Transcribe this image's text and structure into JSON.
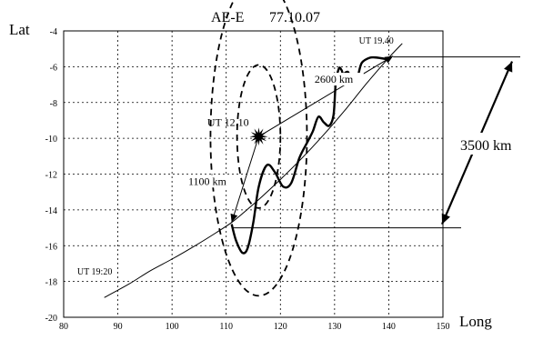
{
  "chart_data": {
    "type": "line",
    "title": "AE-E",
    "subtitle": "77.10.07",
    "xlabel": "Long",
    "ylabel": "Lat",
    "xlim": [
      80,
      150
    ],
    "ylim": [
      -20,
      -4
    ],
    "x_ticks": [
      "80",
      "90",
      "100",
      "110",
      "120",
      "130",
      "140",
      "150"
    ],
    "y_ticks": [
      "-4",
      "-6",
      "-8",
      "-10",
      "-12",
      "-14",
      "-16",
      "-18",
      "-20"
    ],
    "grid": "dotted",
    "series": [
      {
        "role": "satellite-orbit",
        "x": [
          87.5,
          92,
          96,
          100,
          104,
          108,
          111,
          114,
          117,
          120,
          124,
          128,
          132,
          136,
          140,
          142.5
        ],
        "y": [
          -18.9,
          -18.15,
          -17.4,
          -16.75,
          -16.05,
          -15.3,
          -14.7,
          -13.95,
          -13.15,
          -12.3,
          -11.1,
          -9.8,
          -8.4,
          -6.9,
          -5.5,
          -4.7
        ]
      },
      {
        "role": "disturbance-wave",
        "x": [
          111,
          111.8,
          113,
          114,
          115,
          116,
          117.5,
          119,
          120.5,
          122,
          123.5,
          125,
          126,
          127,
          128,
          129,
          129.8,
          130.2,
          130.8,
          131.3,
          131.6,
          132.5,
          133.3,
          134.2,
          135,
          136.5,
          138,
          140
        ],
        "y": [
          -14.8,
          -15.7,
          -16.4,
          -16.1,
          -14.7,
          -12.7,
          -11.5,
          -11.9,
          -12.7,
          -12.5,
          -11.1,
          -10.2,
          -9.6,
          -8.8,
          -9.1,
          -9.3,
          -8.7,
          -7.0,
          -6.1,
          -6.2,
          -6.4,
          -6.3,
          -6.9,
          -6.6,
          -5.8,
          -5.5,
          -5.5,
          -5.6
        ]
      }
    ],
    "points": {
      "source": {
        "x": 116,
        "y": -9.9,
        "label": "UT 12.10"
      },
      "start": {
        "x": 111,
        "y": -14.7,
        "label": "UT 19:20"
      },
      "end": {
        "x": 140.8,
        "y": -5.4,
        "label": "UT 19.40"
      }
    },
    "circles": [
      {
        "center": [
          116,
          -9.9
        ],
        "radius_units": 8.9,
        "label": "2600 km"
      },
      {
        "center": [
          116,
          -9.9
        ],
        "radius_units": 4.0,
        "label": "1100 km"
      }
    ],
    "annotations": [
      {
        "text": "2600 km",
        "x": 126.3,
        "y": -6.9
      },
      {
        "text": "UT 12.10",
        "x": 106.5,
        "y": -9.3
      },
      {
        "text": "1100 km",
        "x": 103,
        "y": -12.6
      },
      {
        "text": "UT 19:20",
        "x": 82.5,
        "y": -17.6
      },
      {
        "text": "UT 19.40",
        "x": 134.5,
        "y": -4.7
      },
      {
        "text": "3500 km"
      }
    ]
  }
}
